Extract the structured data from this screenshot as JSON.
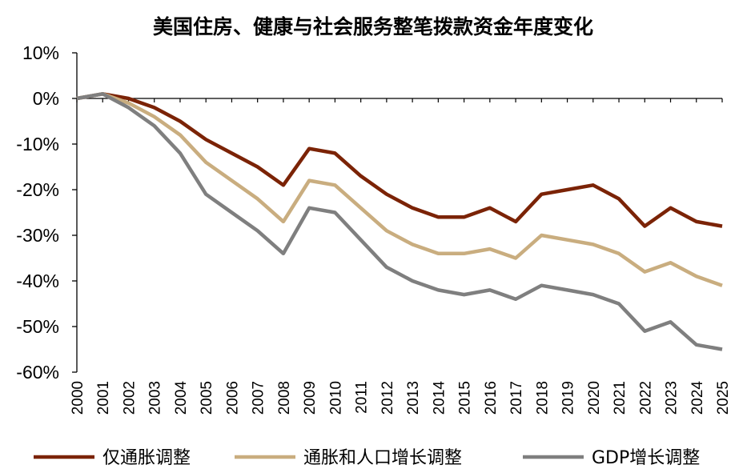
{
  "chart_data": {
    "type": "line",
    "title": "美国住房、健康与社会服务整笔拨款资金年度变化",
    "xlabel": "",
    "ylabel": "",
    "ylim": [
      -60,
      10
    ],
    "yticks": [
      10,
      0,
      -10,
      -20,
      -30,
      -40,
      -50,
      -60
    ],
    "ytick_labels": [
      "10%",
      "0%",
      "-10%",
      "-20%",
      "-30%",
      "-40%",
      "-50%",
      "-60%"
    ],
    "categories": [
      "2000",
      "2001",
      "2002",
      "2003",
      "2004",
      "2005",
      "2006",
      "2007",
      "2008",
      "2009",
      "2010",
      "2011",
      "2012",
      "2013",
      "2014",
      "2015",
      "2016",
      "2017",
      "2018",
      "2019",
      "2020",
      "2021",
      "2022",
      "2023",
      "2024",
      "2025"
    ],
    "legend_position": "bottom",
    "grid": false,
    "series": [
      {
        "name": "仅通胀调整",
        "color": "#7B2306",
        "values": [
          0,
          1,
          0,
          -2,
          -5,
          -9,
          -12,
          -15,
          -19,
          -11,
          -12,
          -17,
          -21,
          -24,
          -26,
          -26,
          -24,
          -27,
          -21,
          -20,
          -19,
          -22,
          -28,
          -24,
          -27,
          -28
        ]
      },
      {
        "name": "通胀和人口增长调整",
        "color": "#C9AD7F",
        "values": [
          0,
          1,
          -1,
          -4,
          -8,
          -14,
          -18,
          -22,
          -27,
          -18,
          -19,
          -24,
          -29,
          -32,
          -34,
          -34,
          -33,
          -35,
          -30,
          -31,
          -32,
          -34,
          -38,
          -36,
          -39,
          -41
        ]
      },
      {
        "name": "GDP增长调整",
        "color": "#7F7F7F",
        "values": [
          0,
          1,
          -2,
          -6,
          -12,
          -21,
          -25,
          -29,
          -34,
          -24,
          -25,
          -31,
          -37,
          -40,
          -42,
          -43,
          -42,
          -44,
          -41,
          -42,
          -43,
          -45,
          -51,
          -49,
          -54,
          -55
        ]
      }
    ]
  }
}
